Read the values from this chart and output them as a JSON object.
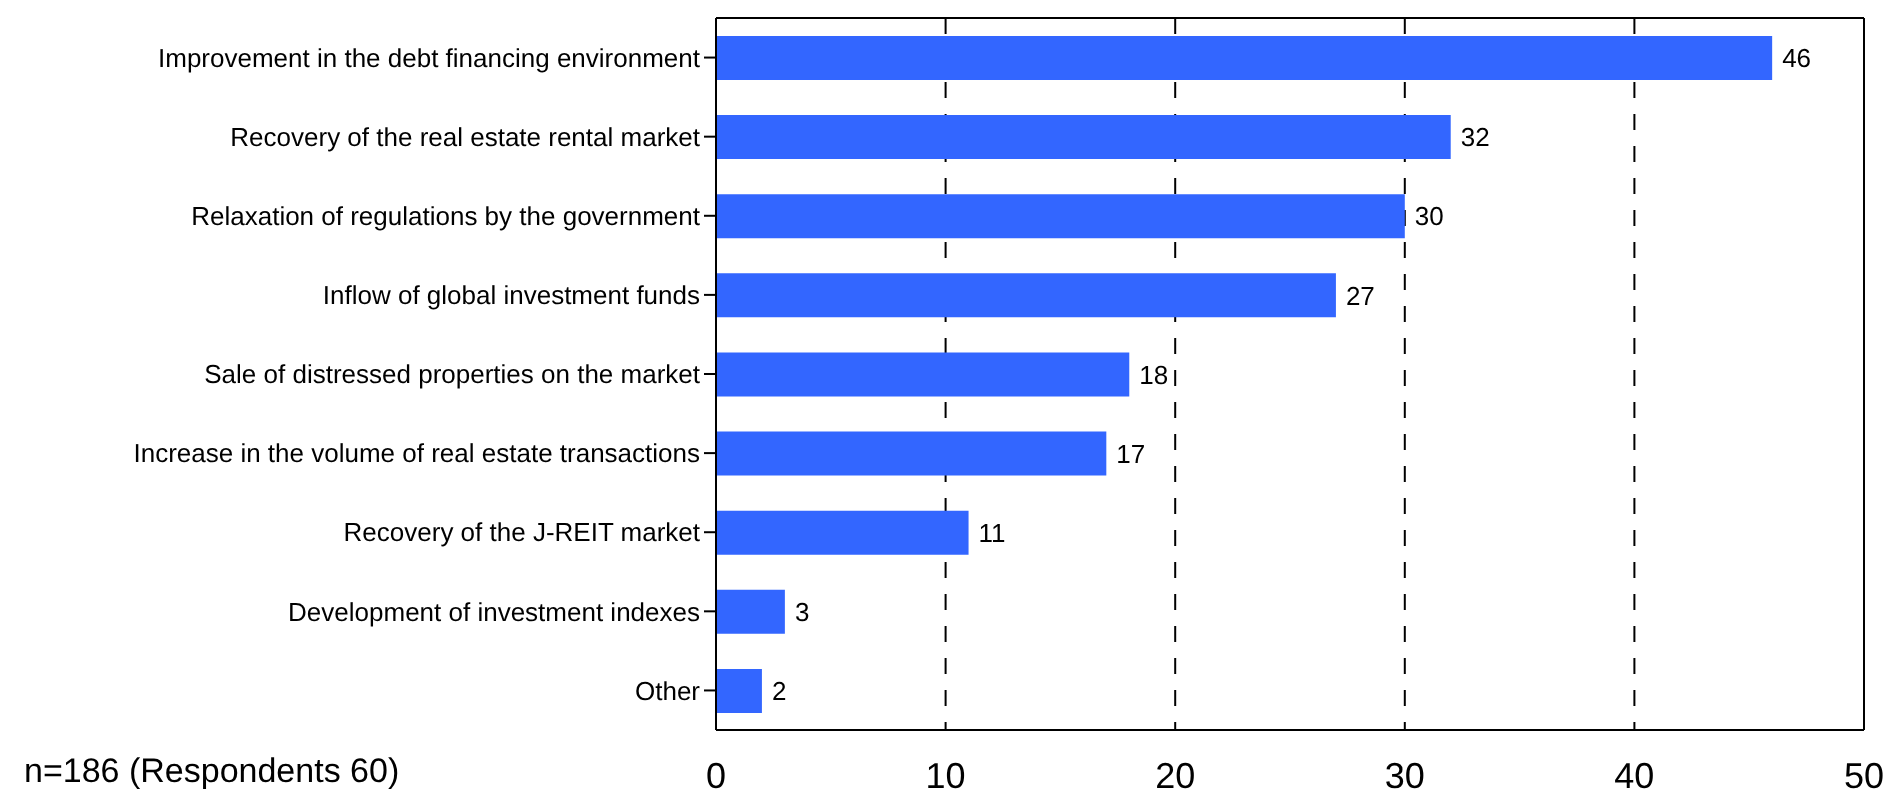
{
  "chart_data": {
    "type": "bar",
    "orientation": "horizontal",
    "categories": [
      "Improvement in the debt financing environment",
      "Recovery of the real estate rental market",
      "Relaxation of regulations by the government",
      "Inflow of global investment funds",
      "Sale of distressed properties on the market",
      "Increase in the volume of real estate transactions",
      "Recovery of the J-REIT market",
      "Development of investment indexes",
      "Other"
    ],
    "values": [
      46,
      32,
      30,
      27,
      18,
      17,
      11,
      3,
      2
    ],
    "color": "#3366ff",
    "xlim": [
      0,
      50
    ],
    "xticks": [
      0,
      10,
      20,
      30,
      40,
      50
    ],
    "grid": "x",
    "data_labels": true,
    "annotations": [
      "n=186 (Respondents 60)"
    ]
  }
}
